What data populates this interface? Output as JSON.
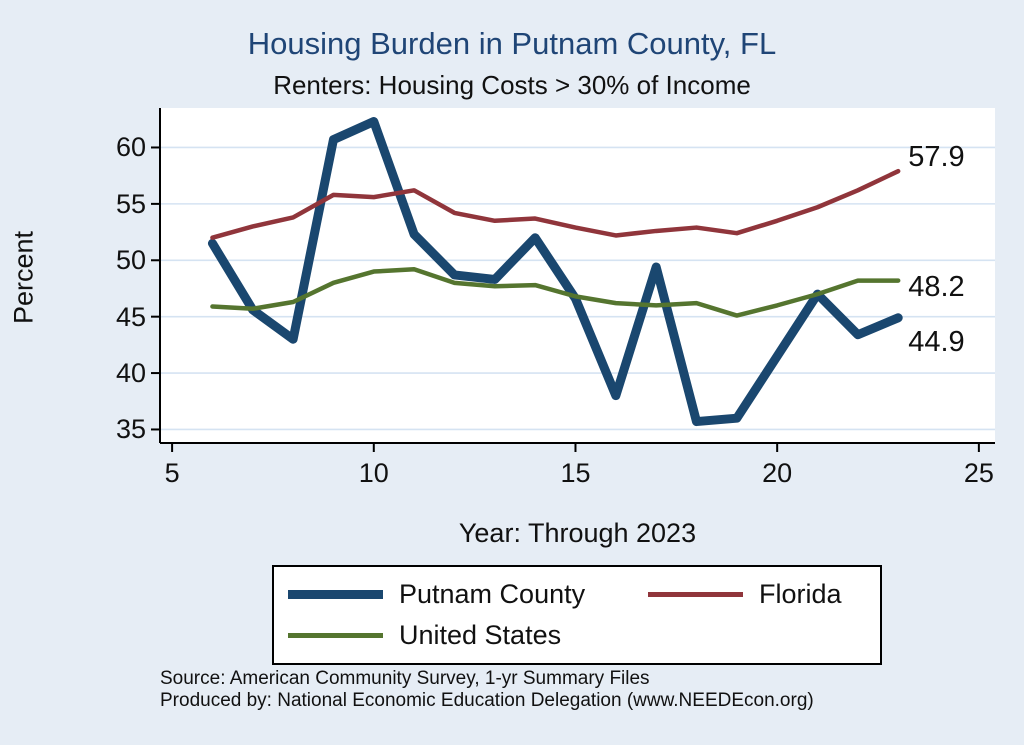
{
  "colors": {
    "background": "#e6edf5",
    "title": "#1f4576",
    "grid": "#d5e3f2",
    "axis": "#000000",
    "plot_background": "#ffffff"
  },
  "chart_data": {
    "type": "line",
    "title": "Housing Burden in Putnam County, FL",
    "subtitle": "Renters: Housing Costs > 30% of Income",
    "xlabel": "Year: Through 2023",
    "ylabel": "Percent",
    "grid": "horizontal",
    "legend_position": "bottom",
    "x": [
      6,
      7,
      8,
      9,
      10,
      11,
      12,
      13,
      14,
      15,
      16,
      17,
      18,
      19,
      20,
      21,
      22,
      23
    ],
    "xticks": [
      5,
      10,
      15,
      20,
      25
    ],
    "yticks": [
      35,
      40,
      45,
      50,
      55,
      60
    ],
    "xlim": [
      4.7,
      25.4
    ],
    "ylim": [
      33.8,
      63.5
    ],
    "series": [
      {
        "name": "Putnam County",
        "color": "#1a476f",
        "width": 9,
        "values": [
          51.5,
          45.6,
          43.0,
          60.7,
          62.3,
          52.3,
          48.7,
          48.3,
          52.0,
          46.6,
          38.0,
          49.4,
          35.7,
          36.0,
          41.5,
          47.0,
          43.4,
          44.9
        ]
      },
      {
        "name": "Florida",
        "color": "#90353b",
        "width": 4.5,
        "values": [
          52.0,
          53.0,
          53.8,
          55.8,
          55.6,
          56.2,
          54.2,
          53.5,
          53.7,
          52.9,
          52.2,
          52.6,
          52.9,
          52.4,
          53.5,
          54.7,
          56.2,
          57.9
        ]
      },
      {
        "name": "United States",
        "color": "#55752f",
        "width": 4.5,
        "values": [
          45.9,
          45.7,
          46.3,
          48.0,
          49.0,
          49.2,
          48.0,
          47.7,
          47.8,
          46.8,
          46.2,
          46.0,
          46.2,
          45.1,
          46.0,
          47.0,
          48.2,
          48.2
        ]
      }
    ],
    "end_labels": [
      {
        "text": "57.9",
        "value": 57.9,
        "dy": -14
      },
      {
        "text": "48.2",
        "value": 48.2,
        "dy": 6
      },
      {
        "text": "44.9",
        "value": 44.9,
        "dy": 24
      }
    ],
    "source_line1": "Source: American Community Survey, 1-yr Summary Files",
    "source_line2": "Produced by: National Economic Education Delegation (www.NEEDEcon.org)"
  }
}
